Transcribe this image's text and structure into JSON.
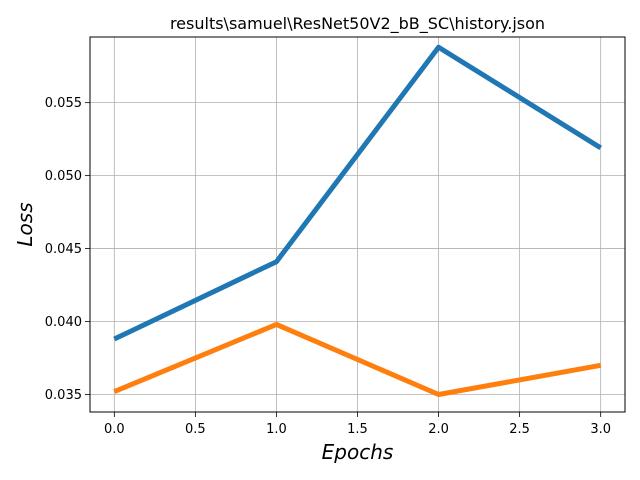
{
  "chart_data": {
    "type": "line",
    "title": "results\\samuel\\ResNet50V2_bB_SC\\history.json",
    "xlabel": "Epochs",
    "ylabel": "Loss",
    "x": [
      0,
      1,
      2,
      3
    ],
    "xlim": [
      -0.15,
      3.15
    ],
    "ylim": [
      0.0338,
      0.0595
    ],
    "xticks": [
      0.0,
      0.5,
      1.0,
      1.5,
      2.0,
      2.5,
      3.0
    ],
    "xtick_labels": [
      "0.0",
      "0.5",
      "1.0",
      "1.5",
      "2.0",
      "2.5",
      "3.0"
    ],
    "yticks": [
      0.035,
      0.04,
      0.045,
      0.05,
      0.055
    ],
    "ytick_labels": [
      "0.035",
      "0.040",
      "0.045",
      "0.050",
      "0.055"
    ],
    "grid": true,
    "series": [
      {
        "color": "#1f77b4",
        "values": [
          0.0388,
          0.0441,
          0.0588,
          0.0519
        ]
      },
      {
        "color": "#ff7f0e",
        "values": [
          0.0352,
          0.0398,
          0.035,
          0.037
        ]
      }
    ]
  }
}
